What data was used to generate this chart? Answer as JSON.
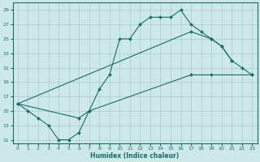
{
  "xlabel": "Humidex (Indice chaleur)",
  "bg_color": "#cde8e8",
  "grid_color": "#aacccc",
  "line_color": "#1a6b6b",
  "xlim": [
    -0.5,
    23.5
  ],
  "ylim": [
    10.5,
    30
  ],
  "xticks": [
    0,
    1,
    2,
    3,
    4,
    5,
    6,
    7,
    8,
    9,
    10,
    11,
    12,
    13,
    14,
    15,
    16,
    17,
    18,
    19,
    20,
    21,
    22,
    23
  ],
  "yticks": [
    11,
    13,
    15,
    17,
    19,
    21,
    23,
    25,
    27,
    29
  ],
  "line1_x": [
    0,
    1,
    2,
    3,
    4,
    5,
    6,
    7,
    8,
    9,
    10,
    11,
    12,
    13,
    14,
    15,
    16,
    17,
    18,
    19,
    20,
    21
  ],
  "line1_y": [
    16,
    15,
    14,
    13,
    11,
    11,
    12,
    15,
    18,
    20,
    25,
    25,
    27,
    28,
    28,
    28,
    29,
    27,
    26,
    25,
    24,
    22
  ],
  "line2_x": [
    0,
    17,
    19,
    20,
    21,
    22,
    23
  ],
  "line2_y": [
    16,
    26,
    25,
    24,
    22,
    21,
    20
  ],
  "line3_x": [
    0,
    6,
    7,
    17,
    19,
    23
  ],
  "line3_y": [
    16,
    14,
    15,
    20,
    20,
    20
  ]
}
